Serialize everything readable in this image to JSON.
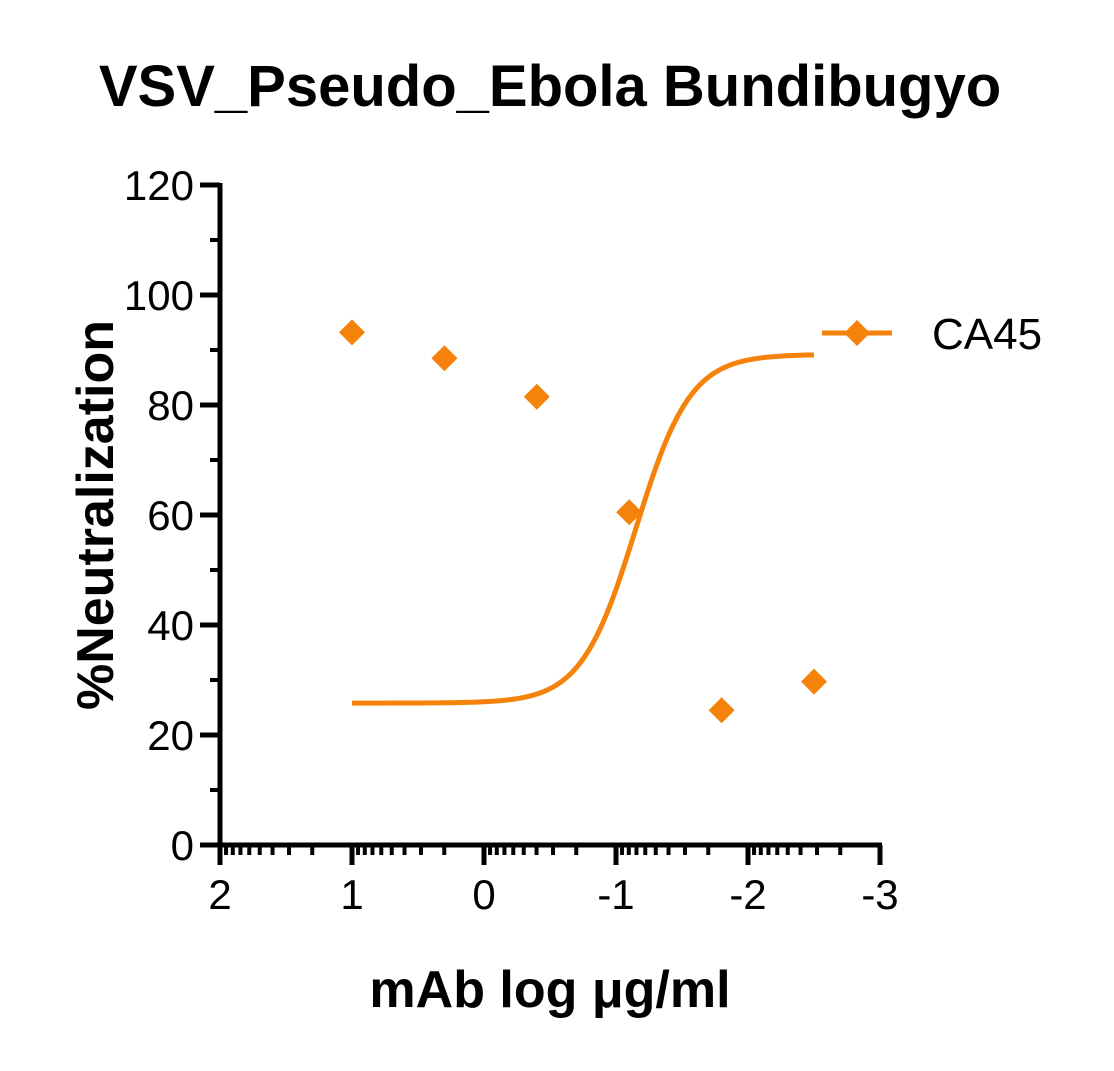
{
  "chart_data": {
    "type": "scatter",
    "title": "VSV_Pseudo_Ebola Bundibugyo",
    "xlabel": "mAb log μg/ml",
    "ylabel": "%Neutralization",
    "x_reversed": true,
    "xlim": [
      2,
      -3
    ],
    "ylim": [
      0,
      120
    ],
    "x_ticks": [
      2,
      1,
      0,
      -1,
      -2,
      -3
    ],
    "x_tick_labels": [
      "2",
      "1",
      "0",
      "-1",
      "-2",
      "-3"
    ],
    "y_ticks": [
      0,
      20,
      40,
      60,
      80,
      100,
      120
    ],
    "y_tick_labels": [
      "0",
      "20",
      "40",
      "60",
      "80",
      "100",
      "120"
    ],
    "grid": false,
    "legend_position": "top-right",
    "series": [
      {
        "name": "CA45",
        "color": "#F5820A",
        "marker": "diamond",
        "points": [
          {
            "x": 1.0,
            "y": 93.2
          },
          {
            "x": 0.3,
            "y": 88.5
          },
          {
            "x": -0.4,
            "y": 81.5
          },
          {
            "x": -1.1,
            "y": 60.5
          },
          {
            "x": -1.8,
            "y": 24.5
          },
          {
            "x": -2.5,
            "y": 29.7
          }
        ],
        "fit_curve": {
          "model": "four-parameter logistic",
          "x_range": [
            1.0,
            -2.5
          ],
          "top": 89.2,
          "bottom": 25.8,
          "log_ic50": -1.15,
          "hill_slope": -2.1
        }
      }
    ]
  }
}
